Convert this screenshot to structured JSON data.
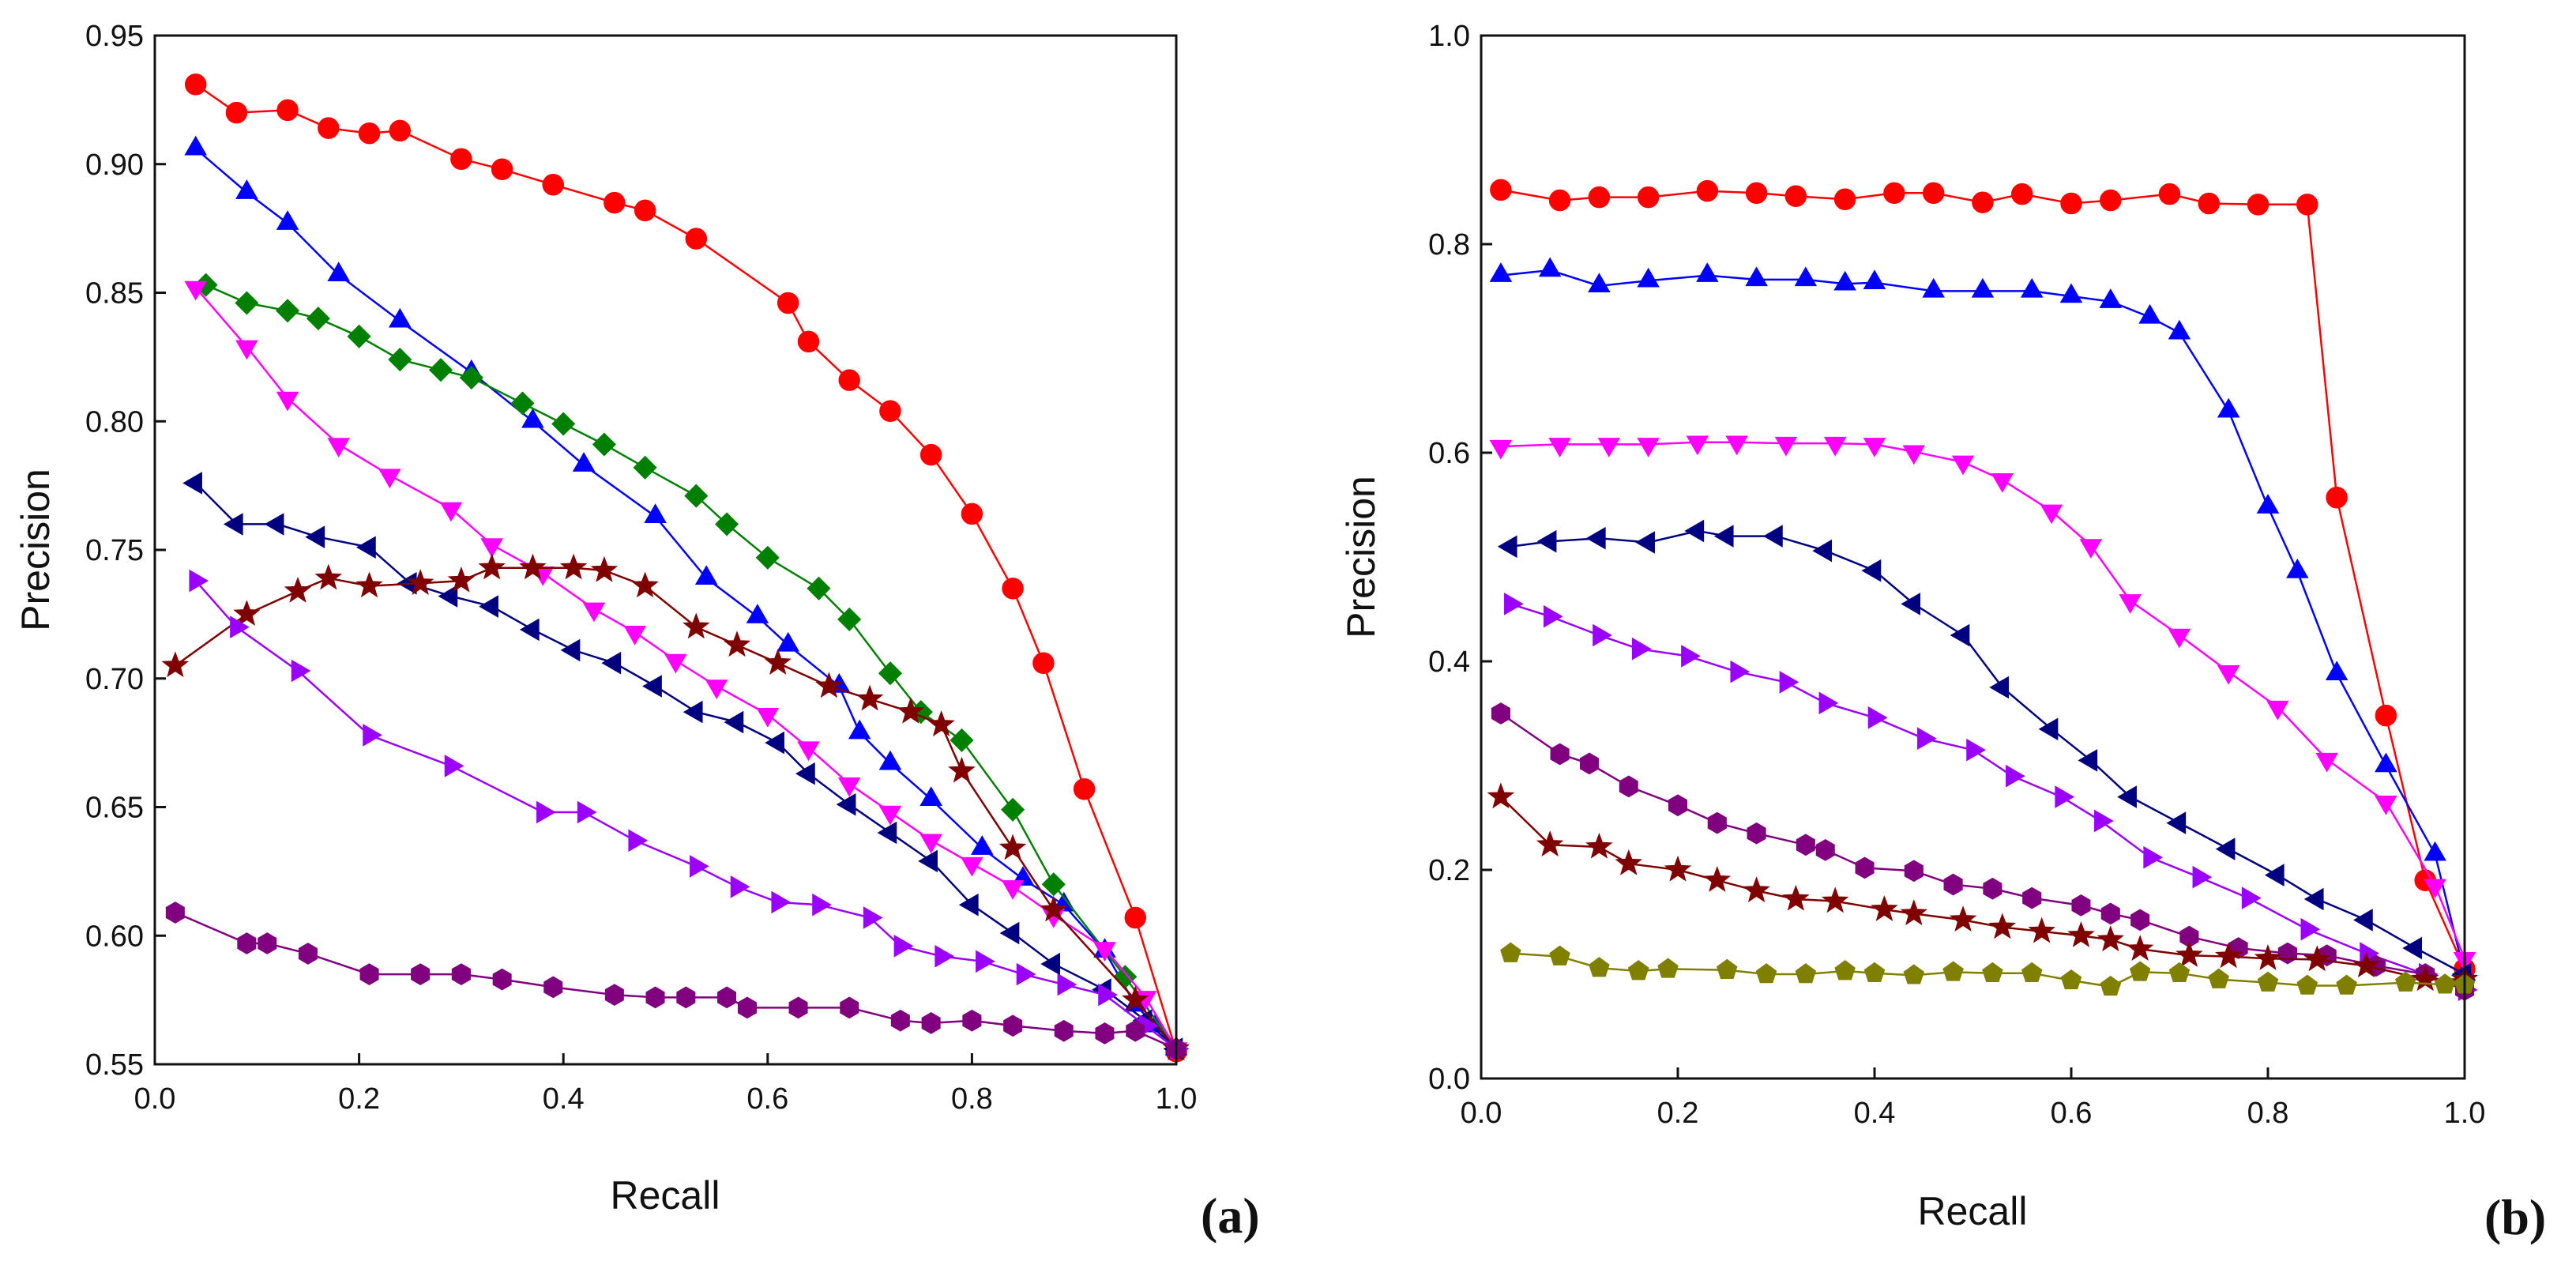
{
  "chart_data": [
    {
      "type": "line",
      "panel_label": "(a)",
      "xlabel": "Recall",
      "ylabel": "Precision",
      "xlim": [
        0.0,
        1.0
      ],
      "ylim": [
        0.55,
        0.95
      ],
      "xticks": [
        "0.0",
        "0.2",
        "0.4",
        "0.6",
        "0.8",
        "1.0"
      ],
      "yticks": [
        "0.55",
        "0.60",
        "0.65",
        "0.70",
        "0.75",
        "0.80",
        "0.85",
        "0.90",
        "0.95"
      ],
      "grid": false,
      "series": [
        {
          "name": "red-circle",
          "color": "#ff0000",
          "marker": "circle",
          "x": [
            0.04,
            0.08,
            0.13,
            0.17,
            0.21,
            0.24,
            0.3,
            0.34,
            0.39,
            0.45,
            0.48,
            0.53,
            0.62,
            0.64,
            0.68,
            0.72,
            0.76,
            0.8,
            0.84,
            0.87,
            0.91,
            0.96,
            1.0
          ],
          "y": [
            0.931,
            0.92,
            0.921,
            0.914,
            0.912,
            0.913,
            0.902,
            0.898,
            0.892,
            0.885,
            0.882,
            0.871,
            0.846,
            0.831,
            0.816,
            0.804,
            0.787,
            0.764,
            0.735,
            0.706,
            0.657,
            0.607,
            0.555
          ]
        },
        {
          "name": "blue-triangle-up",
          "color": "#0000ff",
          "marker": "triangle-up",
          "x": [
            0.04,
            0.09,
            0.13,
            0.18,
            0.24,
            0.31,
            0.37,
            0.42,
            0.49,
            0.54,
            0.59,
            0.62,
            0.67,
            0.69,
            0.72,
            0.76,
            0.81,
            0.85,
            0.89,
            0.93,
            0.96,
            0.98,
            1.0
          ],
          "y": [
            0.906,
            0.889,
            0.877,
            0.857,
            0.839,
            0.819,
            0.8,
            0.783,
            0.763,
            0.739,
            0.724,
            0.713,
            0.697,
            0.679,
            0.667,
            0.653,
            0.634,
            0.622,
            0.612,
            0.594,
            0.573,
            0.565,
            0.556
          ]
        },
        {
          "name": "green-diamond",
          "color": "#008000",
          "marker": "diamond",
          "x": [
            0.05,
            0.09,
            0.13,
            0.16,
            0.2,
            0.24,
            0.28,
            0.31,
            0.36,
            0.4,
            0.44,
            0.48,
            0.53,
            0.56,
            0.6,
            0.65,
            0.68,
            0.72,
            0.75,
            0.79,
            0.84,
            0.88,
            0.95,
            1.0
          ],
          "y": [
            0.853,
            0.846,
            0.843,
            0.84,
            0.833,
            0.824,
            0.82,
            0.817,
            0.807,
            0.799,
            0.791,
            0.782,
            0.771,
            0.76,
            0.747,
            0.735,
            0.723,
            0.702,
            0.687,
            0.676,
            0.649,
            0.62,
            0.584,
            0.556
          ]
        },
        {
          "name": "magenta-triangle-down",
          "color": "#ff00ff",
          "marker": "triangle-down",
          "x": [
            0.04,
            0.09,
            0.13,
            0.18,
            0.23,
            0.29,
            0.33,
            0.38,
            0.43,
            0.47,
            0.51,
            0.55,
            0.6,
            0.64,
            0.68,
            0.72,
            0.76,
            0.8,
            0.84,
            0.88,
            0.93,
            0.97,
            1.0
          ],
          "y": [
            0.852,
            0.829,
            0.809,
            0.791,
            0.779,
            0.766,
            0.752,
            0.741,
            0.727,
            0.718,
            0.707,
            0.697,
            0.686,
            0.673,
            0.659,
            0.648,
            0.637,
            0.628,
            0.619,
            0.608,
            0.595,
            0.576,
            0.556
          ]
        },
        {
          "name": "navy-triangle-left",
          "color": "#000080",
          "marker": "triangle-left",
          "x": [
            0.04,
            0.08,
            0.12,
            0.16,
            0.21,
            0.25,
            0.29,
            0.33,
            0.37,
            0.41,
            0.45,
            0.49,
            0.53,
            0.57,
            0.61,
            0.64,
            0.68,
            0.72,
            0.76,
            0.8,
            0.84,
            0.88,
            0.93,
            0.97,
            1.0
          ],
          "y": [
            0.776,
            0.76,
            0.76,
            0.755,
            0.751,
            0.737,
            0.732,
            0.728,
            0.719,
            0.711,
            0.706,
            0.697,
            0.687,
            0.683,
            0.675,
            0.663,
            0.651,
            0.64,
            0.629,
            0.612,
            0.601,
            0.589,
            0.579,
            0.567,
            0.556
          ]
        },
        {
          "name": "darkred-star",
          "color": "#800000",
          "marker": "star",
          "x": [
            0.02,
            0.09,
            0.14,
            0.17,
            0.21,
            0.26,
            0.3,
            0.33,
            0.37,
            0.41,
            0.44,
            0.48,
            0.53,
            0.57,
            0.61,
            0.66,
            0.7,
            0.74,
            0.77,
            0.79,
            0.84,
            0.88,
            0.96,
            1.0
          ],
          "y": [
            0.705,
            0.725,
            0.734,
            0.739,
            0.736,
            0.737,
            0.738,
            0.743,
            0.743,
            0.743,
            0.742,
            0.736,
            0.72,
            0.713,
            0.706,
            0.697,
            0.692,
            0.687,
            0.682,
            0.664,
            0.634,
            0.61,
            0.575,
            0.556
          ]
        },
        {
          "name": "purple-triangle-right",
          "color": "#9b00ff",
          "marker": "triangle-right",
          "x": [
            0.04,
            0.08,
            0.14,
            0.21,
            0.29,
            0.38,
            0.42,
            0.47,
            0.53,
            0.57,
            0.61,
            0.65,
            0.7,
            0.73,
            0.77,
            0.81,
            0.85,
            0.89,
            0.93,
            0.97,
            1.0
          ],
          "y": [
            0.738,
            0.72,
            0.703,
            0.678,
            0.666,
            0.648,
            0.648,
            0.637,
            0.627,
            0.619,
            0.613,
            0.612,
            0.607,
            0.596,
            0.592,
            0.59,
            0.585,
            0.581,
            0.577,
            0.565,
            0.556
          ]
        },
        {
          "name": "violet-hexagon",
          "color": "#800080",
          "marker": "hexagon",
          "x": [
            0.02,
            0.09,
            0.11,
            0.15,
            0.21,
            0.26,
            0.3,
            0.34,
            0.39,
            0.45,
            0.49,
            0.52,
            0.56,
            0.58,
            0.63,
            0.68,
            0.73,
            0.76,
            0.8,
            0.84,
            0.89,
            0.93,
            0.96,
            1.0
          ],
          "y": [
            0.609,
            0.597,
            0.597,
            0.593,
            0.585,
            0.585,
            0.585,
            0.583,
            0.58,
            0.577,
            0.576,
            0.576,
            0.576,
            0.572,
            0.572,
            0.572,
            0.567,
            0.566,
            0.567,
            0.565,
            0.563,
            0.562,
            0.563,
            0.556
          ]
        }
      ]
    },
    {
      "type": "line",
      "panel_label": "(b)",
      "xlabel": "Recall",
      "ylabel": "Precision",
      "xlim": [
        0.0,
        1.0
      ],
      "ylim": [
        0.0,
        1.0
      ],
      "xticks": [
        "0.0",
        "0.2",
        "0.4",
        "0.6",
        "0.8",
        "1.0"
      ],
      "yticks": [
        "0.0",
        "0.2",
        "0.4",
        "0.6",
        "0.8",
        "1.0"
      ],
      "grid": false,
      "series": [
        {
          "name": "red-circle",
          "color": "#ff0000",
          "marker": "circle",
          "x": [
            0.02,
            0.08,
            0.12,
            0.17,
            0.23,
            0.28,
            0.32,
            0.37,
            0.42,
            0.46,
            0.51,
            0.55,
            0.6,
            0.64,
            0.7,
            0.74,
            0.79,
            0.84,
            0.87,
            0.92,
            0.96,
            1.0
          ],
          "y": [
            0.852,
            0.842,
            0.845,
            0.845,
            0.851,
            0.849,
            0.846,
            0.843,
            0.849,
            0.849,
            0.84,
            0.848,
            0.839,
            0.842,
            0.848,
            0.839,
            0.838,
            0.838,
            0.557,
            0.348,
            0.19,
            0.105
          ]
        },
        {
          "name": "blue-triangle-up",
          "color": "#0000ff",
          "marker": "triangle-up",
          "x": [
            0.02,
            0.07,
            0.12,
            0.17,
            0.23,
            0.28,
            0.33,
            0.37,
            0.4,
            0.46,
            0.51,
            0.56,
            0.6,
            0.64,
            0.68,
            0.71,
            0.76,
            0.8,
            0.83,
            0.87,
            0.92,
            0.97,
            1.0
          ],
          "y": [
            0.77,
            0.775,
            0.76,
            0.765,
            0.77,
            0.766,
            0.766,
            0.762,
            0.763,
            0.755,
            0.755,
            0.755,
            0.75,
            0.745,
            0.73,
            0.715,
            0.64,
            0.548,
            0.486,
            0.388,
            0.3,
            0.215,
            0.1
          ]
        },
        {
          "name": "magenta-triangle-down",
          "color": "#ff00ff",
          "marker": "triangle-down",
          "x": [
            0.02,
            0.08,
            0.13,
            0.17,
            0.22,
            0.26,
            0.31,
            0.36,
            0.4,
            0.44,
            0.49,
            0.53,
            0.58,
            0.62,
            0.66,
            0.71,
            0.76,
            0.81,
            0.86,
            0.92,
            0.97,
            1.0
          ],
          "y": [
            0.606,
            0.608,
            0.608,
            0.608,
            0.61,
            0.61,
            0.609,
            0.609,
            0.608,
            0.601,
            0.591,
            0.574,
            0.544,
            0.511,
            0.458,
            0.425,
            0.39,
            0.356,
            0.306,
            0.265,
            0.185,
            0.115
          ]
        },
        {
          "name": "navy-triangle-left",
          "color": "#000080",
          "marker": "triangle-left",
          "x": [
            0.03,
            0.07,
            0.12,
            0.17,
            0.22,
            0.25,
            0.3,
            0.35,
            0.4,
            0.44,
            0.49,
            0.53,
            0.58,
            0.62,
            0.66,
            0.71,
            0.76,
            0.81,
            0.85,
            0.9,
            0.95,
            1.0
          ],
          "y": [
            0.51,
            0.515,
            0.518,
            0.514,
            0.525,
            0.52,
            0.52,
            0.506,
            0.487,
            0.455,
            0.425,
            0.375,
            0.335,
            0.305,
            0.27,
            0.245,
            0.22,
            0.195,
            0.172,
            0.152,
            0.125,
            0.1
          ]
        },
        {
          "name": "purple-triangle-right",
          "color": "#9b00ff",
          "marker": "triangle-right",
          "x": [
            0.03,
            0.07,
            0.12,
            0.16,
            0.21,
            0.26,
            0.31,
            0.35,
            0.4,
            0.45,
            0.5,
            0.54,
            0.59,
            0.63,
            0.68,
            0.73,
            0.78,
            0.84,
            0.9,
            0.96,
            1.0
          ],
          "y": [
            0.455,
            0.443,
            0.425,
            0.412,
            0.405,
            0.39,
            0.38,
            0.36,
            0.346,
            0.326,
            0.315,
            0.29,
            0.27,
            0.247,
            0.212,
            0.193,
            0.173,
            0.143,
            0.12,
            0.1,
            0.085
          ]
        },
        {
          "name": "violet-hexagon",
          "color": "#800080",
          "marker": "hexagon",
          "x": [
            0.02,
            0.08,
            0.11,
            0.15,
            0.2,
            0.24,
            0.28,
            0.33,
            0.35,
            0.39,
            0.44,
            0.48,
            0.52,
            0.56,
            0.61,
            0.64,
            0.67,
            0.72,
            0.77,
            0.82,
            0.86,
            0.91,
            0.96,
            1.0
          ],
          "y": [
            0.35,
            0.311,
            0.302,
            0.28,
            0.262,
            0.245,
            0.235,
            0.224,
            0.219,
            0.202,
            0.199,
            0.186,
            0.182,
            0.173,
            0.166,
            0.158,
            0.152,
            0.136,
            0.125,
            0.12,
            0.118,
            0.108,
            0.1,
            0.085
          ]
        },
        {
          "name": "darkred-star",
          "color": "#800000",
          "marker": "star",
          "x": [
            0.02,
            0.07,
            0.12,
            0.15,
            0.2,
            0.24,
            0.28,
            0.32,
            0.36,
            0.41,
            0.44,
            0.49,
            0.53,
            0.57,
            0.61,
            0.64,
            0.67,
            0.72,
            0.76,
            0.8,
            0.85,
            0.9,
            0.96,
            1.0
          ],
          "y": [
            0.27,
            0.224,
            0.222,
            0.206,
            0.2,
            0.19,
            0.18,
            0.172,
            0.17,
            0.162,
            0.158,
            0.152,
            0.145,
            0.141,
            0.137,
            0.133,
            0.124,
            0.118,
            0.117,
            0.115,
            0.114,
            0.108,
            0.095,
            0.095
          ]
        },
        {
          "name": "olive-pentagon",
          "color": "#808000",
          "marker": "pentagon",
          "x": [
            0.03,
            0.08,
            0.12,
            0.16,
            0.19,
            0.25,
            0.29,
            0.33,
            0.37,
            0.4,
            0.44,
            0.48,
            0.52,
            0.56,
            0.6,
            0.64,
            0.67,
            0.71,
            0.75,
            0.8,
            0.84,
            0.88,
            0.94,
            0.98,
            1.0
          ],
          "y": [
            0.12,
            0.117,
            0.106,
            0.103,
            0.105,
            0.104,
            0.1,
            0.1,
            0.103,
            0.101,
            0.099,
            0.102,
            0.101,
            0.101,
            0.094,
            0.088,
            0.102,
            0.101,
            0.095,
            0.092,
            0.089,
            0.089,
            0.092,
            0.09,
            0.09
          ]
        }
      ]
    }
  ]
}
